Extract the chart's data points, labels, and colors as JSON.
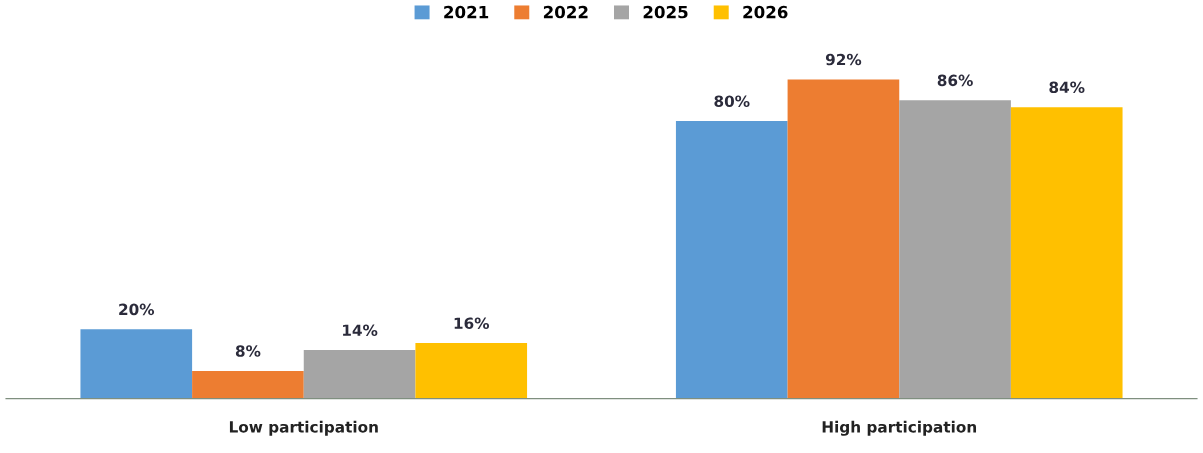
{
  "chart_data": {
    "type": "bar",
    "categories": [
      "Low participation",
      "High participation"
    ],
    "series": [
      {
        "name": "2021",
        "color": "#5b9bd5",
        "values": [
          20,
          80
        ],
        "value_labels": [
          "20%",
          "80%"
        ]
      },
      {
        "name": "2022",
        "color": "#ed7d31",
        "values": [
          8,
          92
        ],
        "value_labels": [
          "8%",
          "92%"
        ]
      },
      {
        "name": "2025",
        "color": "#a5a5a5",
        "values": [
          14,
          86
        ],
        "value_labels": [
          "14%",
          "86%"
        ]
      },
      {
        "name": "2026",
        "color": "#ffc000",
        "values": [
          16,
          84
        ],
        "value_labels": [
          "16%",
          "84%"
        ]
      }
    ],
    "legend": "top",
    "grid": false
  }
}
